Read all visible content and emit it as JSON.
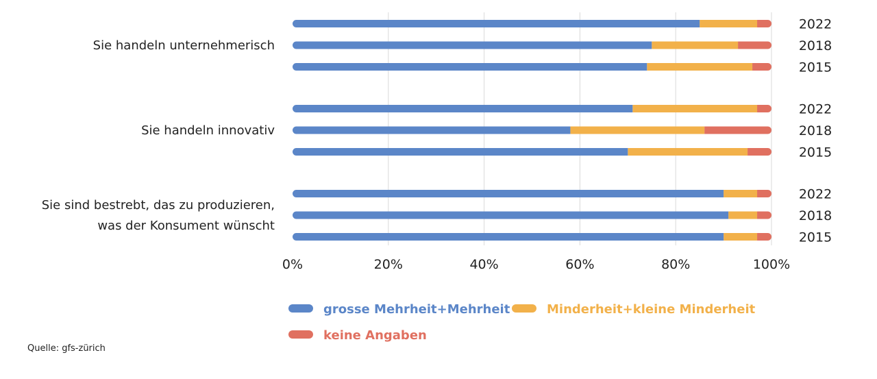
{
  "chart_data": {
    "type": "bar",
    "orientation": "horizontal",
    "stacked": true,
    "categories": [
      {
        "label_lines": [
          "Sie handeln unternehmerisch"
        ]
      },
      {
        "label_lines": [
          "Sie handeln innovativ"
        ]
      },
      {
        "label_lines": [
          "Sie sind bestrebt, das zu produzieren,",
          "was der Konsument wünscht"
        ]
      }
    ],
    "years": [
      "2022",
      "2018",
      "2015"
    ],
    "series": [
      {
        "name": "grosse Mehrheit+Mehrheit",
        "color": "#5b86c8",
        "values": [
          [
            85,
            75,
            74
          ],
          [
            71,
            58,
            70
          ],
          [
            90,
            91,
            90
          ]
        ]
      },
      {
        "name": "Minderheit+kleine Minderheit",
        "color": "#f2b14a",
        "values": [
          [
            12,
            18,
            22
          ],
          [
            26,
            28,
            25
          ],
          [
            7,
            6,
            7
          ]
        ]
      },
      {
        "name": "keine Angaben",
        "color": "#e07060",
        "values": [
          [
            3,
            7,
            4
          ],
          [
            3,
            14,
            5
          ],
          [
            3,
            3,
            3
          ]
        ]
      }
    ],
    "xlim": [
      0,
      100
    ],
    "xticks": [
      "0%",
      "20%",
      "40%",
      "60%",
      "80%",
      "100%"
    ],
    "grid": true,
    "legend_position": "bottom"
  },
  "source": "Quelle: gfs-zürich"
}
